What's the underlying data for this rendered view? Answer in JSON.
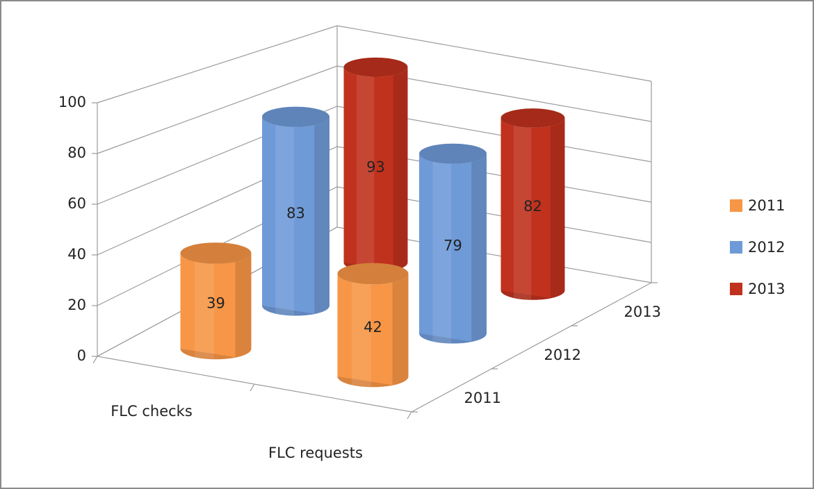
{
  "chart_data": {
    "type": "bar3d",
    "categories": [
      "FLC checks",
      "FLC requests"
    ],
    "series": [
      {
        "name": "2011",
        "color": "#f79646",
        "values": [
          39,
          42
        ]
      },
      {
        "name": "2012",
        "color": "#6f9ad8",
        "values": [
          83,
          79
        ]
      },
      {
        "name": "2013",
        "color": "#c0321e",
        "values": [
          93,
          82
        ]
      }
    ],
    "ylim": [
      0,
      100
    ],
    "yticks": [
      0,
      20,
      40,
      60,
      80,
      100
    ],
    "grid": true,
    "legend": "right"
  }
}
